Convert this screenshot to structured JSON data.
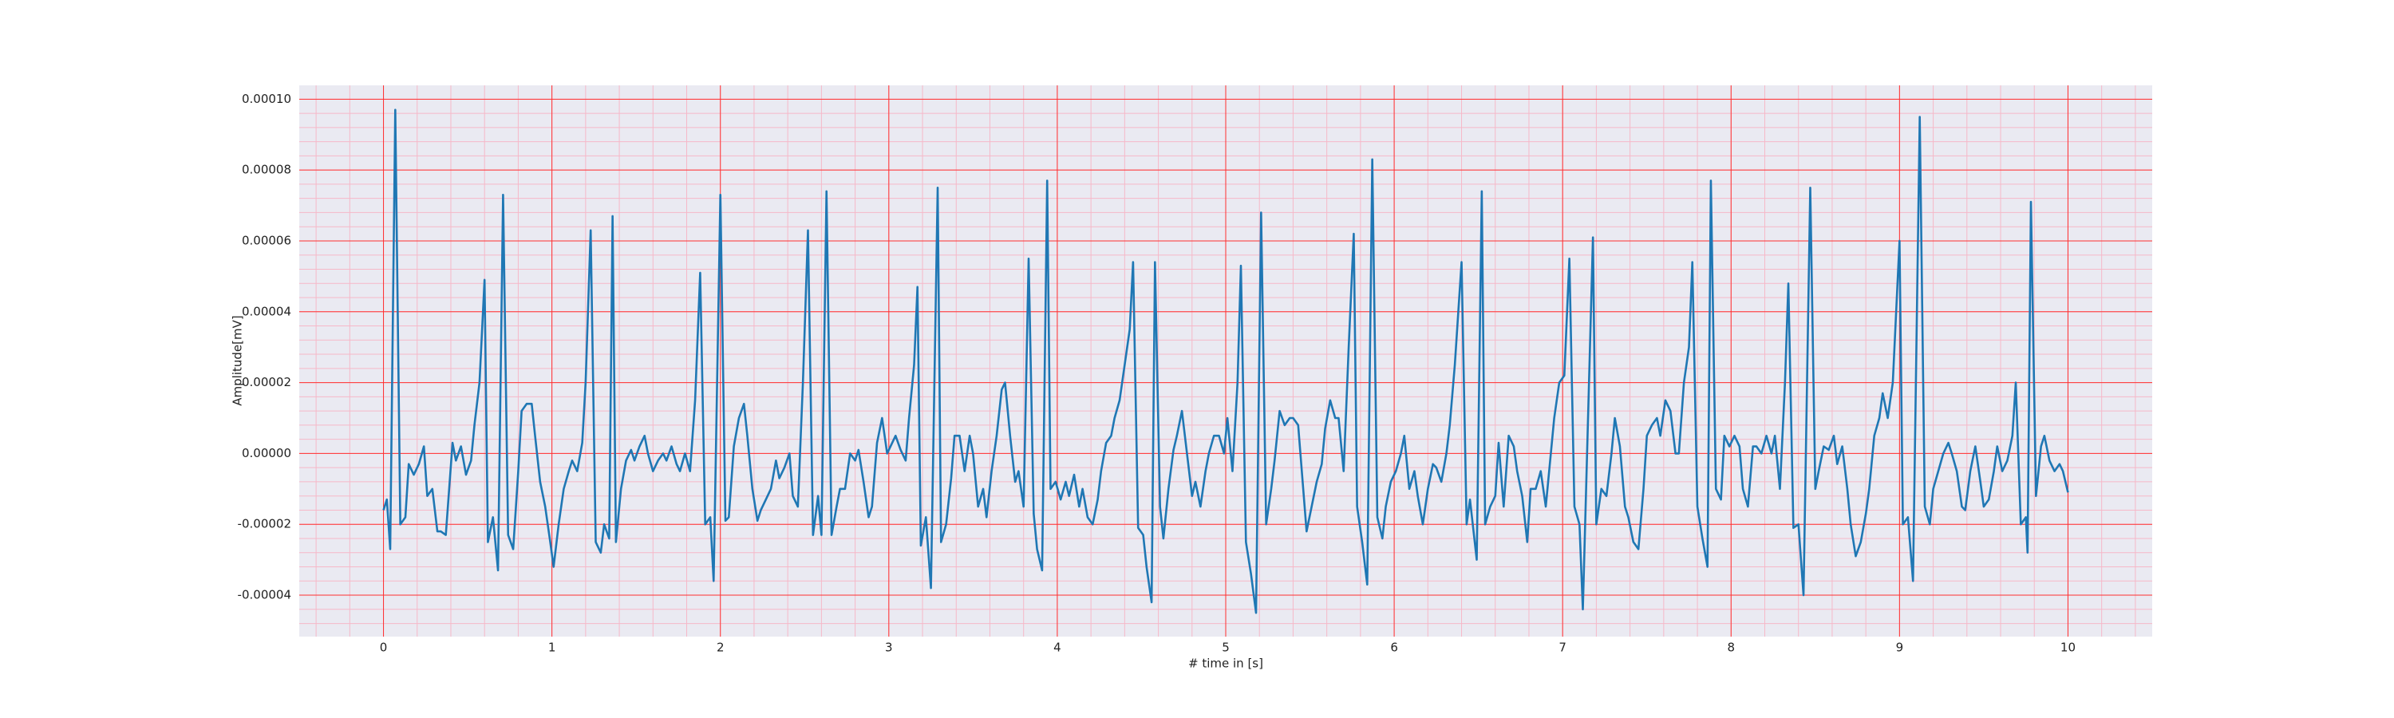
{
  "chart_data": {
    "type": "line",
    "x_label": "# time in [s]",
    "y_label": "Amplitude[mV]",
    "color": "#1f77b4",
    "grid": true,
    "xlim": [
      -0.5,
      10.5
    ],
    "ylim": [
      -5.17e-05,
      0.0001039
    ],
    "xticks": [
      0,
      1,
      2,
      3,
      4,
      5,
      6,
      7,
      8,
      9,
      10
    ],
    "yticks": [
      {
        "value": -4e-05,
        "label": "-0.00004"
      },
      {
        "value": -2e-05,
        "label": "-0.00002"
      },
      {
        "value": 0,
        "label": "0.00000"
      },
      {
        "value": 2e-05,
        "label": "0.00002"
      },
      {
        "value": 4e-05,
        "label": "0.00004"
      },
      {
        "value": 6e-05,
        "label": "0.00006"
      },
      {
        "value": 8e-05,
        "label": "0.00008"
      },
      {
        "value": 0.0001,
        "label": "0.00010"
      }
    ],
    "x": [
      0.0,
      0.02,
      0.04,
      0.07,
      0.1,
      0.13,
      0.15,
      0.18,
      0.21,
      0.24,
      0.26,
      0.29,
      0.32,
      0.34,
      0.37,
      0.41,
      0.43,
      0.46,
      0.49,
      0.52,
      0.54,
      0.57,
      0.6,
      0.62,
      0.65,
      0.68,
      0.71,
      0.74,
      0.77,
      0.8,
      0.82,
      0.85,
      0.88,
      0.9,
      0.93,
      0.96,
      0.99,
      1.01,
      1.04,
      1.07,
      1.1,
      1.12,
      1.15,
      1.18,
      1.2,
      1.23,
      1.26,
      1.29,
      1.31,
      1.34,
      1.36,
      1.38,
      1.41,
      1.44,
      1.47,
      1.49,
      1.52,
      1.55,
      1.57,
      1.6,
      1.63,
      1.66,
      1.68,
      1.71,
      1.74,
      1.76,
      1.79,
      1.82,
      1.85,
      1.88,
      1.91,
      1.94,
      1.96,
      2.0,
      2.03,
      2.05,
      2.08,
      2.11,
      2.14,
      2.16,
      2.19,
      2.22,
      2.24,
      2.27,
      2.3,
      2.33,
      2.35,
      2.38,
      2.41,
      2.43,
      2.46,
      2.49,
      2.52,
      2.55,
      2.58,
      2.6,
      2.63,
      2.66,
      2.69,
      2.71,
      2.74,
      2.77,
      2.8,
      2.82,
      2.85,
      2.88,
      2.9,
      2.93,
      2.96,
      2.99,
      3.01,
      3.04,
      3.07,
      3.1,
      3.12,
      3.15,
      3.17,
      3.19,
      3.22,
      3.25,
      3.29,
      3.31,
      3.34,
      3.37,
      3.39,
      3.42,
      3.45,
      3.48,
      3.5,
      3.53,
      3.56,
      3.58,
      3.61,
      3.64,
      3.67,
      3.69,
      3.72,
      3.75,
      3.77,
      3.8,
      3.83,
      3.86,
      3.88,
      3.91,
      3.94,
      3.96,
      3.99,
      4.02,
      4.05,
      4.07,
      4.1,
      4.13,
      4.15,
      4.18,
      4.21,
      4.24,
      4.26,
      4.29,
      4.32,
      4.34,
      4.37,
      4.4,
      4.43,
      4.45,
      4.48,
      4.51,
      4.53,
      4.56,
      4.58,
      4.61,
      4.63,
      4.66,
      4.69,
      4.71,
      4.74,
      4.77,
      4.8,
      4.82,
      4.85,
      4.88,
      4.9,
      4.93,
      4.96,
      4.99,
      5.01,
      5.04,
      5.07,
      5.09,
      5.12,
      5.15,
      5.18,
      5.21,
      5.24,
      5.27,
      5.29,
      5.32,
      5.35,
      5.38,
      5.4,
      5.43,
      5.46,
      5.48,
      5.51,
      5.54,
      5.57,
      5.59,
      5.62,
      5.65,
      5.67,
      5.7,
      5.73,
      5.76,
      5.78,
      5.81,
      5.84,
      5.87,
      5.9,
      5.93,
      5.95,
      5.98,
      6.01,
      6.04,
      6.06,
      6.09,
      6.12,
      6.14,
      6.17,
      6.2,
      6.23,
      6.25,
      6.28,
      6.31,
      6.33,
      6.36,
      6.4,
      6.43,
      6.45,
      6.49,
      6.52,
      6.54,
      6.57,
      6.6,
      6.62,
      6.65,
      6.68,
      6.71,
      6.73,
      6.76,
      6.79,
      6.81,
      6.84,
      6.87,
      6.9,
      6.92,
      6.95,
      6.98,
      7.01,
      7.04,
      7.07,
      7.1,
      7.12,
      7.18,
      7.2,
      7.23,
      7.26,
      7.29,
      7.31,
      7.34,
      7.37,
      7.39,
      7.42,
      7.45,
      7.48,
      7.5,
      7.53,
      7.56,
      7.58,
      7.61,
      7.64,
      7.67,
      7.69,
      7.72,
      7.75,
      7.77,
      7.8,
      7.83,
      7.86,
      7.88,
      7.91,
      7.94,
      7.96,
      7.99,
      8.02,
      8.05,
      8.07,
      8.1,
      8.13,
      8.15,
      8.18,
      8.21,
      8.24,
      8.26,
      8.29,
      8.32,
      8.34,
      8.37,
      8.4,
      8.43,
      8.47,
      8.5,
      8.52,
      8.55,
      8.58,
      8.61,
      8.63,
      8.66,
      8.69,
      8.71,
      8.74,
      8.77,
      8.8,
      8.82,
      8.85,
      8.88,
      8.9,
      8.93,
      8.96,
      9.0,
      9.02,
      9.05,
      9.08,
      9.12,
      9.15,
      9.18,
      9.2,
      9.23,
      9.26,
      9.29,
      9.31,
      9.34,
      9.37,
      9.39,
      9.42,
      9.45,
      9.48,
      9.5,
      9.53,
      9.56,
      9.58,
      9.61,
      9.64,
      9.67,
      9.69,
      9.72,
      9.75,
      9.76,
      9.78,
      9.81,
      9.84,
      9.86,
      9.89,
      9.92,
      9.95,
      9.97,
      10.0
    ],
    "values": [
      -1.6e-05,
      -1.3e-05,
      -2.7e-05,
      9.7e-05,
      -2e-05,
      -1.8e-05,
      -3e-06,
      -6e-06,
      -3e-06,
      2e-06,
      -1.2e-05,
      -1e-05,
      -2.2e-05,
      -2.2e-05,
      -2.3e-05,
      3e-06,
      -2e-06,
      2e-06,
      -6e-06,
      -2e-06,
      8e-06,
      2e-05,
      4.9e-05,
      -2.5e-05,
      -1.8e-05,
      -3.3e-05,
      7.3e-05,
      -2.3e-05,
      -2.7e-05,
      -5e-06,
      1.2e-05,
      1.4e-05,
      1.4e-05,
      5e-06,
      -8e-06,
      -1.5e-05,
      -2.5e-05,
      -3.2e-05,
      -2e-05,
      -1e-05,
      -5e-06,
      -2e-06,
      -5e-06,
      3e-06,
      2e-05,
      6.3e-05,
      -2.5e-05,
      -2.8e-05,
      -2e-05,
      -2.4e-05,
      6.7e-05,
      -2.5e-05,
      -1e-05,
      -2e-06,
      1e-06,
      -2e-06,
      2e-06,
      5e-06,
      0,
      -5e-06,
      -2e-06,
      0,
      -2e-06,
      2e-06,
      -3e-06,
      -5e-06,
      0,
      -5e-06,
      1.5e-05,
      5.1e-05,
      -2e-05,
      -1.8e-05,
      -3.6e-05,
      7.3e-05,
      -1.9e-05,
      -1.8e-05,
      2e-06,
      1e-05,
      1.4e-05,
      5e-06,
      -1e-05,
      -1.9e-05,
      -1.6e-05,
      -1.3e-05,
      -1e-05,
      -2e-06,
      -7e-06,
      -4e-06,
      0,
      -1.2e-05,
      -1.5e-05,
      2e-05,
      6.3e-05,
      -2.3e-05,
      -1.2e-05,
      -2.3e-05,
      7.4e-05,
      -2.3e-05,
      -1.5e-05,
      -1e-05,
      -1e-05,
      0,
      -2e-06,
      1e-06,
      -8e-06,
      -1.8e-05,
      -1.5e-05,
      3e-06,
      1e-05,
      0,
      2e-06,
      5e-06,
      1e-06,
      -2e-06,
      1e-05,
      2.5e-05,
      4.7e-05,
      -2.6e-05,
      -1.8e-05,
      -3.8e-05,
      7.5e-05,
      -2.5e-05,
      -2e-05,
      -7e-06,
      5e-06,
      5e-06,
      -5e-06,
      5e-06,
      0,
      -1.5e-05,
      -1e-05,
      -1.8e-05,
      -5e-06,
      5e-06,
      1.8e-05,
      2e-05,
      5e-06,
      -8e-06,
      -5e-06,
      -1.5e-05,
      5.5e-05,
      -1.7e-05,
      -2.7e-05,
      -3.3e-05,
      7.7e-05,
      -1e-05,
      -8e-06,
      -1.3e-05,
      -8e-06,
      -1.2e-05,
      -6e-06,
      -1.5e-05,
      -1e-05,
      -1.8e-05,
      -2e-05,
      -1.3e-05,
      -5e-06,
      3e-06,
      5e-06,
      1e-05,
      1.5e-05,
      2.5e-05,
      3.5e-05,
      5.4e-05,
      -2.1e-05,
      -2.3e-05,
      -3.2e-05,
      -4.2e-05,
      5.4e-05,
      -1.5e-05,
      -2.4e-05,
      -1e-05,
      1e-06,
      5e-06,
      1.2e-05,
      0,
      -1.2e-05,
      -8e-06,
      -1.5e-05,
      -5e-06,
      0,
      5e-06,
      5e-06,
      0,
      1e-05,
      -5e-06,
      2e-05,
      5.3e-05,
      -2.5e-05,
      -3.4e-05,
      -4.5e-05,
      6.8e-05,
      -2e-05,
      -1e-05,
      -2e-06,
      1.2e-05,
      8e-06,
      1e-05,
      1e-05,
      8e-06,
      -1e-05,
      -2.2e-05,
      -1.5e-05,
      -8e-06,
      -3e-06,
      7e-06,
      1.5e-05,
      1e-05,
      1e-05,
      -5e-06,
      3e-05,
      6.2e-05,
      -1.5e-05,
      -2.5e-05,
      -3.7e-05,
      8.3e-05,
      -1.8e-05,
      -2.4e-05,
      -1.5e-05,
      -8e-06,
      -5e-06,
      0,
      5e-06,
      -1e-05,
      -5e-06,
      -1.2e-05,
      -2e-05,
      -1e-05,
      -3e-06,
      -4e-06,
      -8e-06,
      0,
      8e-06,
      2.5e-05,
      5.4e-05,
      -2e-05,
      -1.3e-05,
      -3e-05,
      7.4e-05,
      -2e-05,
      -1.5e-05,
      -1.2e-05,
      3e-06,
      -1.5e-05,
      5e-06,
      2e-06,
      -5e-06,
      -1.2e-05,
      -2.5e-05,
      -1e-05,
      -1e-05,
      -5e-06,
      -1.5e-05,
      -5e-06,
      1e-05,
      2e-05,
      2.2e-05,
      5.5e-05,
      -1.5e-05,
      -2e-05,
      -4.4e-05,
      6.1e-05,
      -2e-05,
      -1e-05,
      -1.2e-05,
      0,
      1e-05,
      2e-06,
      -1.5e-05,
      -1.8e-05,
      -2.5e-05,
      -2.7e-05,
      -1e-05,
      5e-06,
      8e-06,
      1e-05,
      5e-06,
      1.5e-05,
      1.2e-05,
      0,
      0,
      2e-05,
      3e-05,
      5.4e-05,
      -1.5e-05,
      -2.4e-05,
      -3.2e-05,
      7.7e-05,
      -1e-05,
      -1.3e-05,
      5e-06,
      2e-06,
      5e-06,
      2e-06,
      -1e-05,
      -1.5e-05,
      2e-06,
      2e-06,
      0,
      5e-06,
      0,
      5e-06,
      -1e-05,
      2e-05,
      4.8e-05,
      -2.1e-05,
      -2e-05,
      -4e-05,
      7.5e-05,
      -1e-05,
      -5e-06,
      2e-06,
      1e-06,
      5e-06,
      -3e-06,
      2e-06,
      -1e-05,
      -2e-05,
      -2.9e-05,
      -2.5e-05,
      -1.7e-05,
      -1e-05,
      5e-06,
      1e-05,
      1.7e-05,
      1e-05,
      2e-05,
      6e-05,
      -2e-05,
      -1.8e-05,
      -3.6e-05,
      9.5e-05,
      -1.5e-05,
      -2e-05,
      -1e-05,
      -5e-06,
      0,
      3e-06,
      0,
      -5e-06,
      -1.5e-05,
      -1.6e-05,
      -5e-06,
      2e-06,
      -8e-06,
      -1.5e-05,
      -1.3e-05,
      -5e-06,
      2e-06,
      -5e-06,
      -2e-06,
      5e-06,
      2e-05,
      -2e-05,
      -1.8e-05,
      -2.8e-05,
      7.1e-05,
      -1.2e-05,
      2e-06,
      5e-06,
      -2e-06,
      -5e-06,
      -3e-06,
      -5e-06,
      -1.1e-05
    ]
  }
}
